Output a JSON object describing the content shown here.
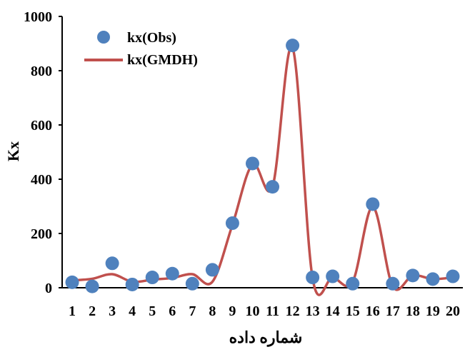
{
  "chart_data": {
    "type": "line",
    "title": "",
    "xlabel": "شماره داده",
    "ylabel": "Kx",
    "x": [
      1,
      2,
      3,
      4,
      5,
      6,
      7,
      8,
      9,
      10,
      11,
      12,
      13,
      14,
      15,
      16,
      17,
      18,
      19,
      20
    ],
    "x_tick_labels": [
      "1",
      "2",
      "3",
      "4",
      "5",
      "6",
      "7",
      "8",
      "9",
      "10",
      "11",
      "12",
      "13",
      "14",
      "15",
      "16",
      "17",
      "18",
      "19",
      "20"
    ],
    "ylim": [
      0,
      1000
    ],
    "y_ticks": [
      0,
      200,
      400,
      600,
      800,
      1000
    ],
    "y_tick_labels": [
      "0",
      "200",
      "400",
      "600",
      "800",
      "1000"
    ],
    "grid": false,
    "legend_position": "top-left",
    "series": [
      {
        "name": "kx(Obs)",
        "kind": "scatter",
        "color": "#4F81BD",
        "values": [
          20,
          5,
          90,
          12,
          38,
          52,
          15,
          66,
          238,
          458,
          372,
          893,
          38,
          42,
          15,
          308,
          15,
          45,
          32,
          42
        ]
      },
      {
        "name": "kx(GMDH)",
        "kind": "line",
        "color": "#C0504D",
        "values": [
          27,
          33,
          50,
          22,
          30,
          36,
          50,
          22,
          232,
          455,
          372,
          885,
          35,
          38,
          22,
          298,
          5,
          45,
          32,
          38
        ]
      }
    ]
  }
}
